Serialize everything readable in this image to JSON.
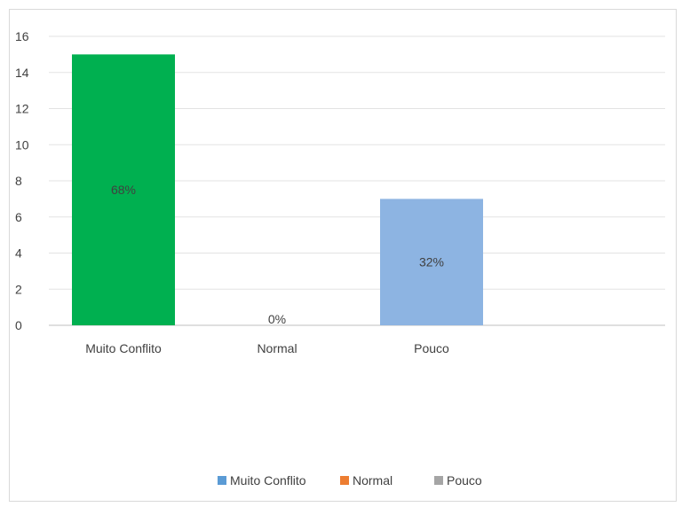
{
  "chart_data": {
    "type": "bar",
    "categories": [
      "Muito Conflito",
      "Normal",
      "Pouco"
    ],
    "values": [
      15,
      0,
      7
    ],
    "data_labels": [
      "68%",
      "0%",
      "32%"
    ],
    "bar_colors": [
      "#00b050",
      "#ed7d31",
      "#8db4e2"
    ],
    "ylim": [
      0,
      16
    ],
    "y_ticks": [
      "0",
      "2",
      "4",
      "6",
      "8",
      "10",
      "12",
      "14",
      "16"
    ],
    "grid": true,
    "legend_position": "bottom",
    "legend": [
      {
        "label": "Muito Conflito",
        "color": "#5b9bd5"
      },
      {
        "label": "Normal",
        "color": "#ed7d31"
      },
      {
        "label": "Pouco",
        "color": "#a5a5a5"
      }
    ],
    "title": "",
    "xlabel": "",
    "ylabel": ""
  }
}
